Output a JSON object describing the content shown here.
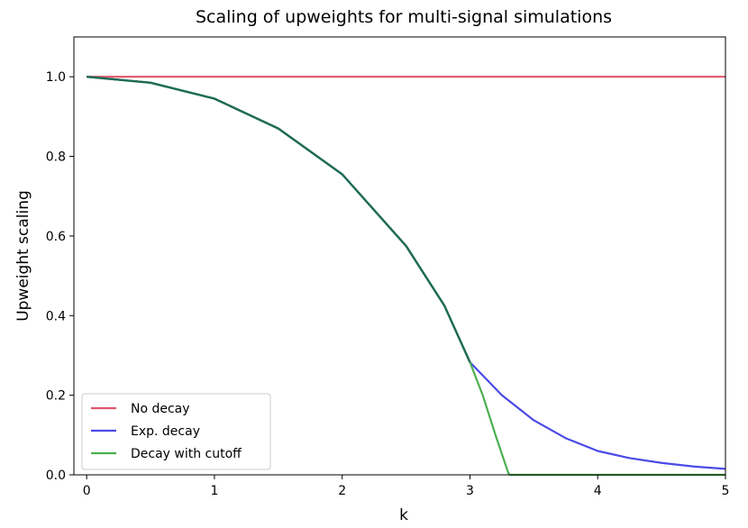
{
  "chart_data": {
    "type": "line",
    "title": "Scaling of upweights for multi-signal simulations",
    "xlabel": "k",
    "ylabel": "Upweight scaling",
    "xlim": [
      -0.1,
      5.0
    ],
    "ylim": [
      0.0,
      1.1
    ],
    "xticks": [
      "0",
      "1",
      "2",
      "3",
      "4",
      "5"
    ],
    "yticks": [
      "0.0",
      "0.2",
      "0.4",
      "0.6",
      "0.8",
      "1.0"
    ],
    "grid": false,
    "legend_position": "lower-left",
    "series": [
      {
        "name": "No decay",
        "color": "#e0556b",
        "x": [
          0.0,
          5.0
        ],
        "y": [
          1.0,
          1.0
        ]
      },
      {
        "name": "Exp. decay",
        "color": "#4a4ae6",
        "x": [
          0.0,
          0.5,
          1.0,
          1.5,
          2.0,
          2.5,
          2.8,
          3.0,
          3.25,
          3.5,
          3.75,
          4.0,
          4.25,
          4.5,
          4.75,
          5.0
        ],
        "y": [
          1.0,
          0.985,
          0.945,
          0.87,
          0.755,
          0.575,
          0.425,
          0.283,
          0.2,
          0.137,
          0.092,
          0.06,
          0.042,
          0.03,
          0.021,
          0.015
        ]
      },
      {
        "name": "Decay with cutoff",
        "color": "#4caf50",
        "x": [
          0.0,
          0.5,
          1.0,
          1.5,
          2.0,
          2.5,
          2.8,
          3.0,
          3.1,
          3.2,
          3.3,
          3.31,
          5.0
        ],
        "y": [
          1.0,
          0.985,
          0.945,
          0.87,
          0.755,
          0.575,
          0.425,
          0.283,
          0.2,
          0.1,
          0.005,
          0.0,
          0.0
        ]
      }
    ]
  }
}
